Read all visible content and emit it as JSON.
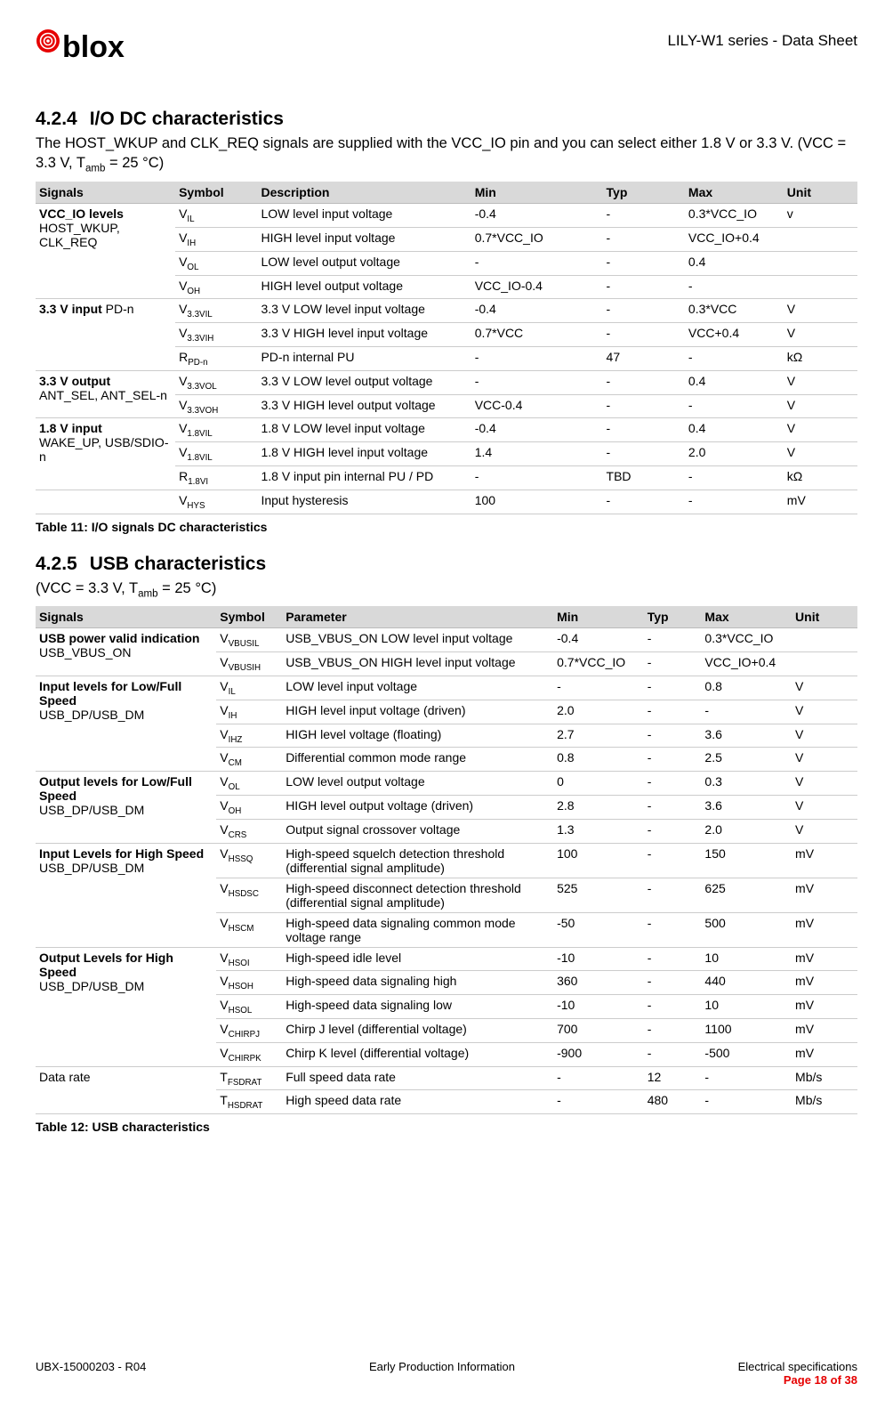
{
  "header": {
    "doc_title": "LILY-W1 series - Data Sheet"
  },
  "section1": {
    "number": "4.2.4",
    "title": "I/O DC characteristics",
    "intro_a": "The HOST_WKUP and CLK_REQ signals are supplied with the VCC_IO pin and you can select either 1.8 V or 3.3 V. (VCC = 3.3 V, T",
    "intro_sub": "amb",
    "intro_b": " = 25 °C)",
    "headers": [
      "Signals",
      "Symbol",
      "Description",
      "Min",
      "Typ",
      "Max",
      "Unit"
    ],
    "groups": [
      {
        "sig_bold": "VCC_IO levels",
        "sig_sub": "HOST_WKUP, CLK_REQ",
        "rows": [
          {
            "sym": "V",
            "sub": "IL",
            "desc": "LOW level input voltage",
            "min": " -0.4",
            "typ": "-",
            "max": "0.3*VCC_IO",
            "unit": "v"
          },
          {
            "sym": "V",
            "sub": "IH",
            "desc": "HIGH level input voltage",
            "min": "0.7*VCC_IO",
            "typ": "-",
            "max": "VCC_IO+0.4",
            "unit": ""
          },
          {
            "sym": "V",
            "sub": "OL",
            "desc": "LOW level output voltage",
            "min": "-",
            "typ": "-",
            "max": "0.4",
            "unit": ""
          },
          {
            "sym": "V",
            "sub": "OH",
            "desc": "HIGH level output voltage",
            "min": "VCC_IO-0.4",
            "typ": "-",
            "max": "-",
            "unit": ""
          }
        ]
      },
      {
        "sig_bold": "3.3 V input",
        "sig_sub": " PD-n",
        "inline": true,
        "rows": [
          {
            "sym": "V",
            "sub": "3.3VIL",
            "desc": "3.3 V LOW level input voltage",
            "min": "-0.4",
            "typ": "-",
            "max": "0.3*VCC",
            "unit": "V"
          },
          {
            "sym": "V",
            "sub": "3.3VIH",
            "desc": "3.3 V HIGH level input voltage",
            "min": "0.7*VCC",
            "typ": "-",
            "max": "VCC+0.4",
            "unit": "V"
          },
          {
            "sym": "R",
            "sub": "PD-n",
            "desc": "PD-n internal PU",
            "min": "-",
            "typ": "47",
            "max": "-",
            "unit": "kΩ"
          }
        ]
      },
      {
        "sig_bold": "3.3 V output",
        "sig_sub": "ANT_SEL, ANT_SEL-n",
        "rows": [
          {
            "sym": "V",
            "sub": "3.3VOL",
            "desc": "3.3 V LOW level output voltage",
            "min": "-",
            "typ": "-",
            "max": "0.4",
            "unit": "V"
          },
          {
            "sym": "V",
            "sub": "3.3VOH",
            "desc": "3.3 V HIGH level output voltage",
            "min": "VCC-0.4",
            "typ": "-",
            "max": "-",
            "unit": "V"
          }
        ]
      },
      {
        "sig_bold": "1.8 V input",
        "sig_sub": "WAKE_UP, USB/SDIO-n",
        "rows": [
          {
            "sym": "V",
            "sub": "1.8VIL",
            "desc": "1.8 V LOW level input voltage",
            "min": "-0.4",
            "typ": "-",
            "max": "0.4",
            "unit": "V"
          },
          {
            "sym": "V",
            "sub": "1.8VIL",
            "desc": "1.8 V HIGH level input voltage",
            "min": "1.4",
            "typ": "-",
            "max": "2.0",
            "unit": "V"
          },
          {
            "sym": "R",
            "sub": "1.8VI",
            "desc": "1.8 V input pin internal PU / PD",
            "min": "-",
            "typ": "TBD",
            "max": "-",
            "unit": "kΩ"
          }
        ]
      },
      {
        "sig_bold": "",
        "sig_sub": "",
        "rows": [
          {
            "sym": "V",
            "sub": "HYS",
            "desc": "Input hysteresis",
            "min": "100",
            "typ": "-",
            "max": "-",
            "unit": "mV"
          }
        ]
      }
    ],
    "caption": "Table 11: I/O signals DC characteristics"
  },
  "section2": {
    "number": "4.2.5",
    "title": "USB characteristics",
    "intro_a": "(VCC = 3.3 V, T",
    "intro_sub": "amb",
    "intro_b": " = 25 °C)",
    "headers": [
      "Signals",
      "Symbol",
      "Parameter",
      "Min",
      "Typ",
      "Max",
      "Unit"
    ],
    "groups": [
      {
        "sig_bold": "USB power valid indication",
        "sig_sub": "USB_VBUS_ON",
        "rows": [
          {
            "sym": "V",
            "sub": "VBUSIL",
            "desc": "USB_VBUS_ON LOW level input voltage",
            "min": "-0.4",
            "typ": "-",
            "max": "0.3*VCC_IO",
            "unit": ""
          },
          {
            "sym": "V",
            "sub": "VBUSIH",
            "desc": "USB_VBUS_ON HIGH level input voltage",
            "min": "0.7*VCC_IO",
            "typ": "-",
            "max": "VCC_IO+0.4",
            "unit": ""
          }
        ]
      },
      {
        "sig_bold": "Input levels for Low/Full Speed",
        "sig_sub": "USB_DP/USB_DM",
        "rows": [
          {
            "sym": "V",
            "sub": "IL",
            "desc": "LOW level input voltage",
            "min": "-",
            "typ": "-",
            "max": "0.8",
            "unit": "V"
          },
          {
            "sym": "V",
            "sub": "IH",
            "desc": "HIGH level input voltage (driven)",
            "min": "2.0",
            "typ": "-",
            "max": "-",
            "unit": "V"
          },
          {
            "sym": "V",
            "sub": "IHZ",
            "desc": "HIGH level voltage (floating)",
            "min": "2.7",
            "typ": "-",
            "max": "3.6",
            "unit": "V"
          },
          {
            "sym": "V",
            "sub": "CM",
            "desc": "Differential common mode range",
            "min": "0.8",
            "typ": "-",
            "max": "2.5",
            "unit": "V"
          }
        ]
      },
      {
        "sig_bold": "Output levels for Low/Full Speed",
        "sig_sub": "USB_DP/USB_DM",
        "rows": [
          {
            "sym": "V",
            "sub": "OL",
            "desc": "LOW level output voltage",
            "min": " 0",
            "typ": "-",
            "max": "0.3",
            "unit": "V"
          },
          {
            "sym": "V",
            "sub": "OH",
            "desc": "HIGH level output voltage (driven)",
            "min": "2.8",
            "typ": "-",
            "max": "3.6",
            "unit": "V"
          },
          {
            "sym": "V",
            "sub": "CRS",
            "desc": "Output signal crossover voltage",
            "min": "1.3",
            "typ": "-",
            "max": "2.0",
            "unit": "V"
          }
        ]
      },
      {
        "sig_bold": "Input Levels for High Speed",
        "sig_sub": "USB_DP/USB_DM",
        "rows": [
          {
            "sym": "V",
            "sub": "HSSQ",
            "desc": "High-speed squelch detection threshold (differential signal amplitude)",
            "min": "100",
            "typ": "-",
            "max": "150",
            "unit": "mV"
          },
          {
            "sym": "V",
            "sub": "HSDSC",
            "desc": "High-speed disconnect detection threshold (differential signal amplitude)",
            "min": "525",
            "typ": "-",
            "max": "625",
            "unit": "mV"
          },
          {
            "sym": "V",
            "sub": "HSCM",
            "desc": "High-speed data signaling common mode voltage range",
            "min": "-50",
            "typ": "-",
            "max": "500",
            "unit": "mV"
          }
        ]
      },
      {
        "sig_bold": "Output Levels for High Speed",
        "sig_sub": "USB_DP/USB_DM",
        "rows": [
          {
            "sym": "V",
            "sub": "HSOI",
            "desc": "High-speed idle level",
            "min": "-10",
            "typ": "-",
            "max": "10",
            "unit": "mV"
          },
          {
            "sym": "V",
            "sub": "HSOH",
            "desc": "High-speed data signaling high",
            "min": "360",
            "typ": "-",
            "max": "440",
            "unit": "mV"
          },
          {
            "sym": "V",
            "sub": "HSOL",
            "desc": "High-speed data signaling low",
            "min": "-10",
            "typ": "-",
            "max": "10",
            "unit": "mV"
          },
          {
            "sym": "V",
            "sub": "CHIRPJ",
            "desc": "Chirp J level (differential voltage)",
            "min": "700",
            "typ": "-",
            "max": "1100",
            "unit": "mV"
          },
          {
            "sym": "V",
            "sub": "CHIRPK",
            "desc": "Chirp K level (differential voltage)",
            "min": "-900",
            "typ": "-",
            "max": "-500",
            "unit": "mV"
          }
        ]
      },
      {
        "sig_bold": "",
        "sig_sub": "Data rate",
        "plain": true,
        "rows": [
          {
            "sym": "T",
            "sub": "FSDRAT",
            "desc": "Full speed data rate",
            "min": "-",
            "typ": "12",
            "max": "-",
            "unit": "Mb/s"
          },
          {
            "sym": "T",
            "sub": "HSDRAT",
            "desc": "High speed data rate",
            "min": "-",
            "typ": "480",
            "max": "-",
            "unit": "Mb/s"
          }
        ]
      }
    ],
    "caption": "Table 12: USB characteristics"
  },
  "footer": {
    "left": "UBX-15000203 - R04",
    "center": "Early Production Information",
    "right1": "Electrical specifications",
    "right2": "Page 18 of 38"
  }
}
